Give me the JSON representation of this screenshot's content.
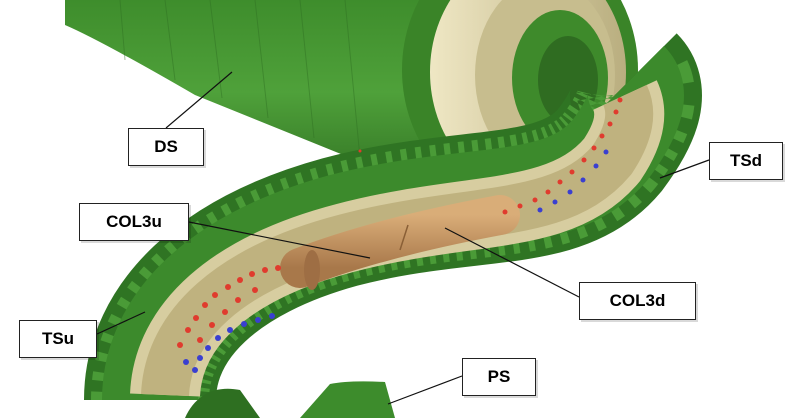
{
  "labels": {
    "ds": "DS",
    "tsd": "TSd",
    "col3u": "COL3u",
    "col3d": "COL3d",
    "tsu": "TSu",
    "ps": "PS"
  },
  "colors": {
    "solenoid_green": "#3f8f2e",
    "solenoid_dark": "#2b6a1f",
    "inner_bore": "#d8cfa4",
    "collimator": "#c99a64",
    "particles_red": "#e03b2e",
    "particles_blue": "#3a3fd0"
  }
}
